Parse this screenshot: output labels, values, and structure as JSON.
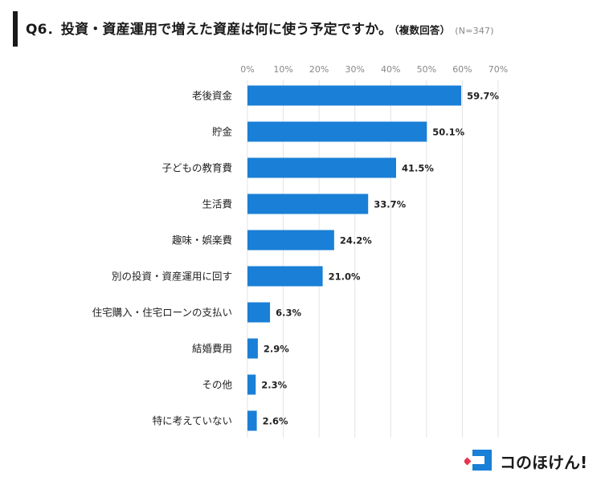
{
  "header": {
    "title": "Q6．投資・資産運用で増えた資産は何に使う予定ですか。",
    "subtitle": "（複数回答）",
    "sample": "(N=347)"
  },
  "chart_data": {
    "type": "bar",
    "orientation": "horizontal",
    "categories": [
      "老後資金",
      "貯金",
      "子どもの教育費",
      "生活費",
      "趣味・娯楽費",
      "別の投資・資産運用に回す",
      "住宅購入・住宅ローンの支払い",
      "結婚費用",
      "その他",
      "特に考えていない"
    ],
    "values": [
      59.7,
      50.1,
      41.5,
      33.7,
      24.2,
      21.0,
      6.3,
      2.9,
      2.3,
      2.6
    ],
    "value_labels": [
      "59.7%",
      "50.1%",
      "41.5%",
      "33.7%",
      "24.2%",
      "21.0%",
      "6.3%",
      "2.9%",
      "2.3%",
      "2.6%"
    ],
    "xlim": [
      0,
      70
    ],
    "ticks": [
      0,
      10,
      20,
      30,
      40,
      50,
      60,
      70
    ],
    "tick_labels": [
      "0%",
      "10%",
      "20%",
      "30%",
      "40%",
      "50%",
      "60%",
      "70%"
    ],
    "axis_position": "top",
    "grid": true,
    "bar_color": "#1a7fd6",
    "grid_color": "#e3e3e3"
  },
  "logo": {
    "text": "コのほけん!",
    "accent_color": "#e8344e",
    "brand_color": "#1a7fd6"
  }
}
